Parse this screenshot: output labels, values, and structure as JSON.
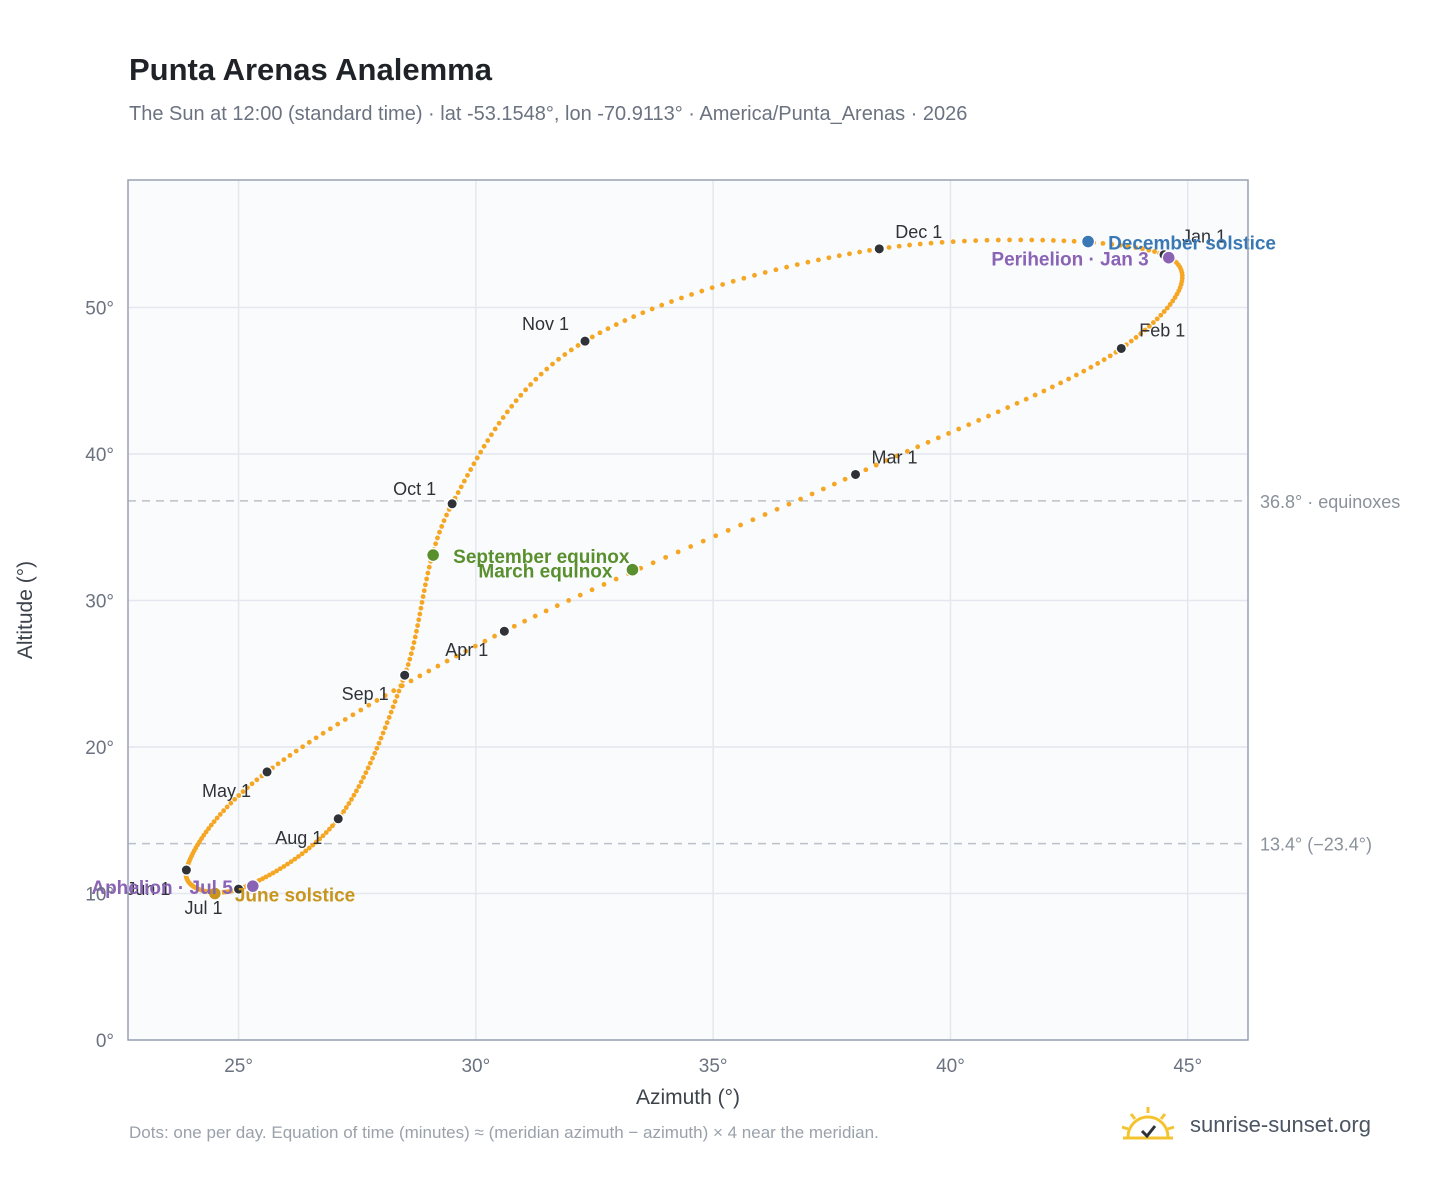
{
  "title": "Punta Arenas Analemma",
  "subtitle": "The Sun at 12:00 (standard time) · lat -53.1548°, lon -70.9113° · America/Punta_Arenas · 2026",
  "footnote": "Dots: one per day. Equation of time (minutes) ≈ (meridian azimuth − azimuth) × 4 near the meridian.",
  "brand": "sunrise-sunset.org",
  "colors": {
    "path": "#f5a623",
    "month_marker": "#2f3338",
    "solstice_december": "#3a78b5",
    "solstice_june": "#c8961e",
    "equinox": "#5a8f2e",
    "apsis": "#8a63b5",
    "plot_bg": "#f9fbfd",
    "grid": "#e3e8ee",
    "reference_line": "#bcc1c8",
    "axis": "#98a2b3"
  },
  "chart_data": {
    "type": "scatter",
    "title": "Punta Arenas Analemma",
    "xlabel": "Azimuth (°)",
    "ylabel": "Altitude (°)",
    "xlim": [
      22.67,
      46.27
    ],
    "ylim": [
      0,
      58.7
    ],
    "x_ticks": [
      25,
      30,
      35,
      40,
      45
    ],
    "y_ticks": [
      0,
      10,
      20,
      30,
      40,
      50
    ],
    "tick_suffix": "°",
    "grid": true,
    "reference_lines": [
      {
        "y": 36.8,
        "label": "36.8° · equinoxes"
      },
      {
        "y": 13.4,
        "label": "13.4° (−23.4°)"
      }
    ],
    "month_points": [
      {
        "label": "Jan 1",
        "x": 44.5,
        "y": 53.6
      },
      {
        "label": "Feb 1",
        "x": 43.6,
        "y": 47.2
      },
      {
        "label": "Mar 1",
        "x": 38.0,
        "y": 38.6
      },
      {
        "label": "Apr 1",
        "x": 30.6,
        "y": 27.9
      },
      {
        "label": "May 1",
        "x": 25.6,
        "y": 18.3
      },
      {
        "label": "Jun 1",
        "x": 23.9,
        "y": 11.6
      },
      {
        "label": "Jul 1",
        "x": 25.0,
        "y": 10.3
      },
      {
        "label": "Aug 1",
        "x": 27.1,
        "y": 15.1
      },
      {
        "label": "Sep 1",
        "x": 28.5,
        "y": 24.9
      },
      {
        "label": "Oct 1",
        "x": 29.5,
        "y": 36.6
      },
      {
        "label": "Nov 1",
        "x": 32.3,
        "y": 47.7
      },
      {
        "label": "Dec 1",
        "x": 38.5,
        "y": 54.0
      }
    ],
    "events": [
      {
        "label": "December solstice",
        "x": 42.9,
        "y": 54.5,
        "kind": "solstice_december"
      },
      {
        "label": "June solstice",
        "x": 24.5,
        "y": 10.0,
        "kind": "solstice_june"
      },
      {
        "label": "March equinox",
        "x": 33.3,
        "y": 32.1,
        "kind": "equinox"
      },
      {
        "label": "September equinox",
        "x": 29.1,
        "y": 33.1,
        "kind": "equinox"
      },
      {
        "label": "Perihelion · Jan 3",
        "x": 44.6,
        "y": 53.4,
        "kind": "apsis"
      },
      {
        "label": "Aphelion · Jul 5",
        "x": 25.3,
        "y": 10.5,
        "kind": "apsis"
      }
    ]
  }
}
